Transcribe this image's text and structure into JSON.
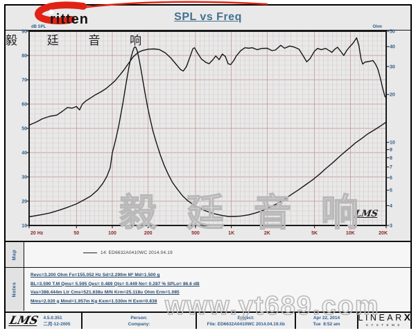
{
  "header": {
    "title": "SPL vs Freq"
  },
  "logo": {
    "brand": "ritten",
    "cn": "毅 廷 音 响"
  },
  "chart_marks": {
    "inner_lms": "LMS"
  },
  "map": {
    "label": "Map",
    "legend": "14: ED6632A0410WC  2014.04.19"
  },
  "notes": {
    "label": "Notes",
    "lines": [
      "Revc=3.200 Ohm  Fo=155.052 Hz  Sd=2.290m M²  Md=1.500 g",
      "BL=3.590 T.M  Qms= 5.595  Qes= 0.489  Qts= 0.449  No= 0.287 %  SPLo= 86.6 dB",
      "Vas=388.444m Ltr  Cms=521.638u M/N  Krm=25.118u Ohm  Erm=1.085",
      "Mms=2.020 g  Mmd=1.957m Kg  Kxm=1.530m H  Exm=0.838"
    ]
  },
  "footer": {
    "lms": "LMS",
    "version": "4.5.0.351",
    "date_cn": "二月-12-2005",
    "person": "Person:",
    "company": "Company:",
    "project": "Project:",
    "file": "File: ED6632A0410WC 2014.04.19.lib",
    "date": "Apr 22, 2014",
    "time": "Tue  8:52 am",
    "brand": "LINEAR",
    "brand_x": "X",
    "brand_sub": "SYSTEMS"
  },
  "watermarks": {
    "site": "www.yt689.com",
    "cn": "毅 廷 音 响"
  },
  "colors": {
    "logo_red": "#e02314",
    "title": "#44708e",
    "axis_blue": "#2d5e8e",
    "axis_red": "#8e2424",
    "note_text": "#24476b",
    "grid_major": "#bc8d8d",
    "grid_minor": "#cfcaca",
    "grid_minor_h": "#ddc6c6",
    "curve": "#151515"
  },
  "chart_data": {
    "type": "line",
    "title": "SPL vs Freq",
    "grid": true,
    "x_axis": {
      "label": "Hz",
      "scale": "log",
      "min": 20,
      "max": 20000,
      "tick_values": [
        20,
        50,
        100,
        200,
        500,
        1000,
        2000,
        5000,
        10000,
        20000
      ],
      "tick_labels": [
        "20 Hz",
        "50",
        "100",
        "200",
        "500",
        "1K",
        "2K",
        "5K",
        "10K",
        "20K"
      ]
    },
    "y_axis_left": {
      "label": "dB SPL",
      "scale": "linear",
      "min": 10,
      "max": 90,
      "minor_step": 2,
      "tick_values": [
        90,
        80,
        70,
        60,
        50,
        40,
        30,
        20,
        10
      ]
    },
    "y_axis_right": {
      "label": "Ohm",
      "scale": "log",
      "min": 3,
      "max": 50,
      "tick_values": [
        50,
        40,
        30,
        20,
        10,
        9,
        8,
        7,
        6,
        5,
        4,
        3
      ]
    },
    "series": [
      {
        "name": "SPL",
        "axis": "left",
        "unit": "dB",
        "points": [
          [
            20,
            51.3
          ],
          [
            23,
            52.6
          ],
          [
            26,
            54
          ],
          [
            30,
            55
          ],
          [
            34,
            55.4
          ],
          [
            38,
            57
          ],
          [
            42,
            58.6
          ],
          [
            46,
            58.3
          ],
          [
            50,
            59
          ],
          [
            53,
            57.6
          ],
          [
            56,
            60
          ],
          [
            60,
            61.3
          ],
          [
            66,
            62.6
          ],
          [
            72,
            63.8
          ],
          [
            80,
            65
          ],
          [
            88,
            66.3
          ],
          [
            97,
            68
          ],
          [
            105,
            69.5
          ],
          [
            115,
            71.8
          ],
          [
            125,
            74
          ],
          [
            138,
            77
          ],
          [
            150,
            79.5
          ],
          [
            165,
            81.3
          ],
          [
            180,
            82.1
          ],
          [
            200,
            82.6
          ],
          [
            225,
            82.7
          ],
          [
            250,
            82.4
          ],
          [
            280,
            81
          ],
          [
            310,
            79
          ],
          [
            345,
            76.3
          ],
          [
            375,
            74.2
          ],
          [
            395,
            73.6
          ],
          [
            420,
            75.5
          ],
          [
            450,
            79.5
          ],
          [
            475,
            82.8
          ],
          [
            490,
            83.2
          ],
          [
            520,
            81
          ],
          [
            560,
            78.6
          ],
          [
            610,
            77.2
          ],
          [
            650,
            76.6
          ],
          [
            700,
            78.3
          ],
          [
            740,
            79.8
          ],
          [
            790,
            78.3
          ],
          [
            840,
            80.6
          ],
          [
            890,
            79.6
          ],
          [
            940,
            76.6
          ],
          [
            990,
            76.3
          ],
          [
            1050,
            78
          ],
          [
            1100,
            79.8
          ],
          [
            1200,
            82
          ],
          [
            1300,
            83.2
          ],
          [
            1400,
            83
          ],
          [
            1500,
            83.2
          ],
          [
            1650,
            82.4
          ],
          [
            1800,
            82.9
          ],
          [
            2000,
            83
          ],
          [
            2200,
            82
          ],
          [
            2350,
            82.3
          ],
          [
            2600,
            84.2
          ],
          [
            2800,
            83
          ],
          [
            3100,
            83.9
          ],
          [
            3400,
            83.4
          ],
          [
            3700,
            82.6
          ],
          [
            4000,
            80
          ],
          [
            4300,
            77.4
          ],
          [
            4600,
            78.8
          ],
          [
            5000,
            81.8
          ],
          [
            5300,
            82.9
          ],
          [
            5700,
            82.4
          ],
          [
            6200,
            82.9
          ],
          [
            6700,
            81.9
          ],
          [
            7000,
            81.3
          ],
          [
            7400,
            82.6
          ],
          [
            7800,
            83.4
          ],
          [
            8300,
            81.7
          ],
          [
            8800,
            80
          ],
          [
            9300,
            82
          ],
          [
            9800,
            83.4
          ],
          [
            10500,
            85
          ],
          [
            11300,
            87.3
          ],
          [
            11800,
            84
          ],
          [
            12300,
            78.5
          ],
          [
            12700,
            76.5
          ],
          [
            13300,
            77.3
          ],
          [
            14500,
            77.6
          ],
          [
            15500,
            77.9
          ],
          [
            16300,
            76.4
          ],
          [
            17000,
            74.5
          ],
          [
            17800,
            71
          ],
          [
            18700,
            66.5
          ],
          [
            19500,
            63.2
          ],
          [
            20000,
            62.6
          ]
        ]
      },
      {
        "name": "Impedance",
        "axis": "right",
        "unit": "Ohm",
        "points": [
          [
            20,
            3.4
          ],
          [
            25,
            3.5
          ],
          [
            30,
            3.6
          ],
          [
            36,
            3.75
          ],
          [
            42,
            3.9
          ],
          [
            50,
            4.1
          ],
          [
            58,
            4.35
          ],
          [
            66,
            4.6
          ],
          [
            75,
            5.0
          ],
          [
            83,
            5.5
          ],
          [
            90,
            6.1
          ],
          [
            96,
            6.9
          ],
          [
            100,
            8.6
          ],
          [
            104,
            9.6
          ],
          [
            108,
            10.8
          ],
          [
            113,
            12.6
          ],
          [
            118,
            15
          ],
          [
            123,
            17.8
          ],
          [
            128,
            21.5
          ],
          [
            133,
            25.5
          ],
          [
            138,
            29.8
          ],
          [
            143,
            33.8
          ],
          [
            148,
            37
          ],
          [
            152,
            39.2
          ],
          [
            155,
            39.9
          ],
          [
            158,
            39.4
          ],
          [
            162,
            37.5
          ],
          [
            167,
            34
          ],
          [
            173,
            29.5
          ],
          [
            180,
            24.8
          ],
          [
            188,
            20.5
          ],
          [
            197,
            17
          ],
          [
            208,
            14
          ],
          [
            220,
            11.7
          ],
          [
            235,
            9.9
          ],
          [
            252,
            8.4
          ],
          [
            272,
            7.2
          ],
          [
            295,
            6.3
          ],
          [
            320,
            5.6
          ],
          [
            350,
            5.1
          ],
          [
            390,
            4.6
          ],
          [
            430,
            4.3
          ],
          [
            480,
            4.05
          ],
          [
            540,
            3.85
          ],
          [
            600,
            3.72
          ],
          [
            680,
            3.6
          ],
          [
            760,
            3.52
          ],
          [
            850,
            3.46
          ],
          [
            950,
            3.42
          ],
          [
            1050,
            3.42
          ],
          [
            1200,
            3.44
          ],
          [
            1400,
            3.5
          ],
          [
            1600,
            3.6
          ],
          [
            1850,
            3.73
          ],
          [
            2100,
            3.9
          ],
          [
            2400,
            4.1
          ],
          [
            2800,
            4.4
          ],
          [
            3200,
            4.7
          ],
          [
            3700,
            5.05
          ],
          [
            4200,
            5.4
          ],
          [
            4800,
            5.8
          ],
          [
            5500,
            6.3
          ],
          [
            6300,
            6.9
          ],
          [
            7200,
            7.5
          ],
          [
            8200,
            8.2
          ],
          [
            9300,
            8.9
          ],
          [
            10000,
            9.3
          ],
          [
            11000,
            9.9
          ],
          [
            12500,
            10.6
          ],
          [
            14000,
            11.3
          ],
          [
            16000,
            12
          ],
          [
            18000,
            12.7
          ],
          [
            20000,
            13.4
          ]
        ]
      }
    ]
  }
}
